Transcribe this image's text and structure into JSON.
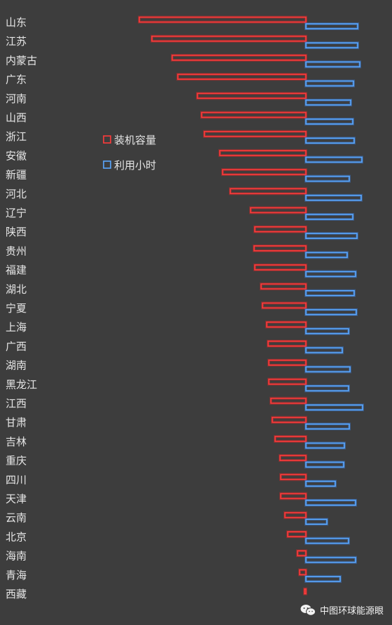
{
  "chart_data": {
    "type": "bar",
    "categories": [
      "山东",
      "江苏",
      "内蒙古",
      "广东",
      "河南",
      "山西",
      "浙江",
      "安徽",
      "新疆",
      "河北",
      "辽宁",
      "陕西",
      "贵州",
      "福建",
      "湖北",
      "宁夏",
      "上海",
      "广西",
      "湖南",
      "黑龙江",
      "江西",
      "甘肃",
      "吉林",
      "重庆",
      "四川",
      "天津",
      "云南",
      "北京",
      "海南",
      "青海",
      "西藏"
    ],
    "series": [
      {
        "name": "装机容量",
        "color": "#ff3b3b",
        "values": [
          238,
          220,
          191,
          183,
          155,
          149,
          145,
          123,
          119,
          108,
          79,
          73,
          74,
          73,
          64,
          62,
          56,
          54,
          53,
          53,
          50,
          48,
          44,
          37,
          36,
          36,
          30,
          26,
          12,
          9,
          2
        ]
      },
      {
        "name": "利用小时",
        "color": "#5aa8ff",
        "values": [
          74,
          74,
          77,
          68,
          64,
          67,
          69,
          80,
          62,
          79,
          67,
          73,
          59,
          71,
          69,
          72,
          61,
          52,
          63,
          61,
          81,
          62,
          55,
          54,
          42,
          71,
          30,
          61,
          71,
          49,
          0
        ]
      }
    ],
    "legend_position": "center-left",
    "grid": false
  },
  "watermark": {
    "text": "中图环球能源眼",
    "icon": "wechat-icon"
  }
}
